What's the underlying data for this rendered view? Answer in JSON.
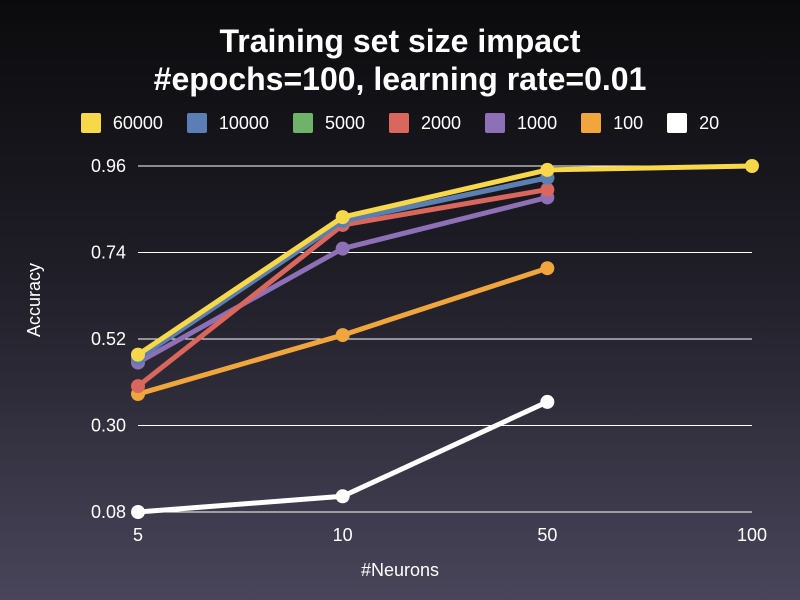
{
  "chart_data": {
    "type": "line",
    "title_lines": [
      "Training set size impact",
      "#epochs=100, learning rate=0.01"
    ],
    "xlabel": "#Neurons",
    "ylabel": "Accuracy",
    "categories": [
      "5",
      "10",
      "50",
      "100"
    ],
    "y_ticks": [
      "0.08",
      "0.30",
      "0.52",
      "0.74",
      "0.96"
    ],
    "ylim": [
      0.08,
      0.96
    ],
    "grid": true,
    "legend_position": "top",
    "series": [
      {
        "name": "60000",
        "color": "#f7d84a",
        "values": [
          0.48,
          0.83,
          0.95,
          0.96
        ]
      },
      {
        "name": "10000",
        "color": "#5b7fb5",
        "values": [
          0.47,
          0.82,
          0.93,
          null
        ]
      },
      {
        "name": "5000",
        "color": "#6fb36a",
        "values": [
          0.48,
          0.82,
          0.93,
          null
        ]
      },
      {
        "name": "2000",
        "color": "#d9675d",
        "values": [
          0.4,
          0.81,
          0.9,
          null
        ]
      },
      {
        "name": "1000",
        "color": "#8d70b6",
        "values": [
          0.46,
          0.75,
          0.88,
          null
        ]
      },
      {
        "name": "100",
        "color": "#f0a63d",
        "values": [
          0.38,
          0.53,
          0.7,
          null
        ]
      },
      {
        "name": "20",
        "color": "#ffffff",
        "values": [
          0.08,
          0.12,
          0.36,
          null
        ]
      }
    ]
  }
}
